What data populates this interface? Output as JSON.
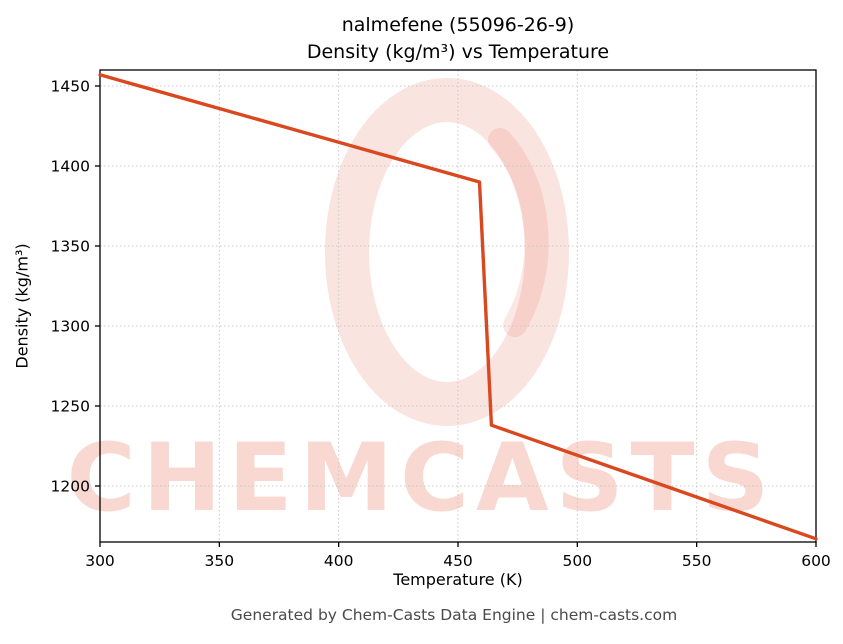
{
  "header": {
    "line1": "nalmefene (55096-26-9)",
    "line2": "Density (kg/m³) vs Temperature"
  },
  "footer": {
    "text": "Generated by Chem-Casts Data Engine | chem-casts.com"
  },
  "watermark": {
    "text": "CHEMCASTS",
    "logo": "chemcasts-ring-logo",
    "color": "#e05a3f"
  },
  "chart_data": {
    "type": "line",
    "title": "nalmefene (55096-26-9) — Density (kg/m³) vs Temperature",
    "xlabel": "Temperature (K)",
    "ylabel": "Density (kg/m³)",
    "xlim": [
      300,
      600
    ],
    "ylim": [
      1165,
      1460
    ],
    "xticks": [
      300,
      350,
      400,
      450,
      500,
      550,
      600
    ],
    "yticks": [
      1200,
      1250,
      1300,
      1350,
      1400,
      1450
    ],
    "grid": true,
    "legend": false,
    "line_color": "#d9481f",
    "series": [
      {
        "name": "density",
        "x": [
          300,
          459,
          464,
          600
        ],
        "y": [
          1457,
          1390,
          1238,
          1167
        ]
      }
    ]
  }
}
